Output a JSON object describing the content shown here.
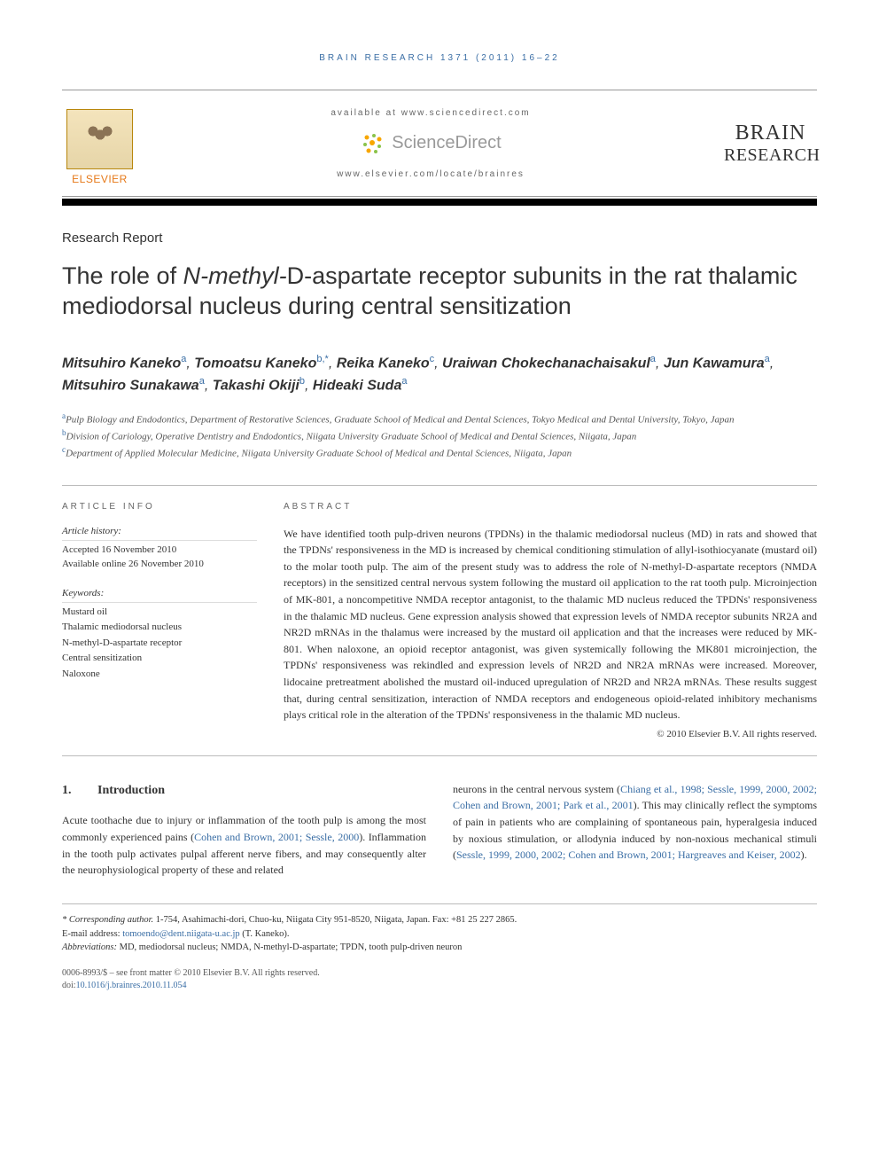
{
  "running_head": "BRAIN RESEARCH 1371 (2011) 16–22",
  "header": {
    "elsevier": "ELSEVIER",
    "available_at": "available at www.sciencedirect.com",
    "sciencedirect": "ScienceDirect",
    "locate": "www.elsevier.com/locate/brainres",
    "journal_line1": "BRAIN",
    "journal_line2": "RESEARCH"
  },
  "article_type": "Research Report",
  "title_parts": {
    "pre": "The role of ",
    "nmda": "N-methyl-",
    "d": "D",
    "post": "-aspartate receptor subunits in the rat thalamic mediodorsal nucleus during central sensitization"
  },
  "authors": [
    {
      "name": "Mitsuhiro Kaneko",
      "affil": "a"
    },
    {
      "name": "Tomoatsu Kaneko",
      "affil": "b,*"
    },
    {
      "name": "Reika Kaneko",
      "affil": "c"
    },
    {
      "name": "Uraiwan Chokechanachaisakul",
      "affil": "a"
    },
    {
      "name": "Jun Kawamura",
      "affil": "a"
    },
    {
      "name": "Mitsuhiro Sunakawa",
      "affil": "a"
    },
    {
      "name": "Takashi Okiji",
      "affil": "b"
    },
    {
      "name": "Hideaki Suda",
      "affil": "a"
    }
  ],
  "affiliations": [
    {
      "label": "a",
      "text": "Pulp Biology and Endodontics, Department of Restorative Sciences, Graduate School of Medical and Dental Sciences, Tokyo Medical and Dental University, Tokyo, Japan"
    },
    {
      "label": "b",
      "text": "Division of Cariology, Operative Dentistry and Endodontics, Niigata University Graduate School of Medical and Dental Sciences, Niigata, Japan"
    },
    {
      "label": "c",
      "text": "Department of Applied Molecular Medicine, Niigata University Graduate School of Medical and Dental Sciences, Niigata, Japan"
    }
  ],
  "article_info": {
    "heading": "ARTICLE INFO",
    "history_label": "Article history:",
    "accepted": "Accepted 16 November 2010",
    "online": "Available online 26 November 2010",
    "keywords_label": "Keywords:",
    "keywords": [
      "Mustard oil",
      "Thalamic mediodorsal nucleus",
      "N-methyl-D-aspartate receptor",
      "Central sensitization",
      "Naloxone"
    ]
  },
  "abstract": {
    "heading": "ABSTRACT",
    "text": "We have identified tooth pulp-driven neurons (TPDNs) in the thalamic mediodorsal nucleus (MD) in rats and showed that the TPDNs' responsiveness in the MD is increased by chemical conditioning stimulation of allyl-isothiocyanate (mustard oil) to the molar tooth pulp. The aim of the present study was to address the role of N-methyl-D-aspartate receptors (NMDA receptors) in the sensitized central nervous system following the mustard oil application to the rat tooth pulp. Microinjection of MK-801, a noncompetitive NMDA receptor antagonist, to the thalamic MD nucleus reduced the TPDNs' responsiveness in the thalamic MD nucleus. Gene expression analysis showed that expression levels of NMDA receptor subunits NR2A and NR2D mRNAs in the thalamus were increased by the mustard oil application and that the increases were reduced by MK-801. When naloxone, an opioid receptor antagonist, was given systemically following the MK801 microinjection, the TPDNs' responsiveness was rekindled and expression levels of NR2D and NR2A mRNAs were increased. Moreover, lidocaine pretreatment abolished the mustard oil-induced upregulation of NR2D and NR2A mRNAs. These results suggest that, during central sensitization, interaction of NMDA receptors and endogeneous opioid-related inhibitory mechanisms plays critical role in the alteration of the TPDNs' responsiveness in the thalamic MD nucleus.",
    "copyright": "© 2010 Elsevier B.V. All rights reserved."
  },
  "section": {
    "num": "1.",
    "title": "Introduction"
  },
  "body": {
    "col1_a": "Acute toothache due to injury or inflammation of the tooth pulp is among the most commonly experienced pains (",
    "col1_cite1": "Cohen and Brown, 2001; Sessle, 2000",
    "col1_b": "). Inflammation in the tooth pulp activates pulpal afferent nerve fibers, and may consequently alter the neurophysiological property of these and related",
    "col2_a": "neurons in the central nervous system (",
    "col2_cite1": "Chiang et al., 1998; Sessle, 1999, 2000, 2002; Cohen and Brown, 2001; Park et al., 2001",
    "col2_b": "). This may clinically reflect the symptoms of pain in patients who are complaining of spontaneous pain, hyperalgesia induced by noxious stimulation, or allodynia induced by non-noxious mechanical stimuli (",
    "col2_cite2": "Sessle, 1999, 2000, 2002; Cohen and Brown, 2001; Hargreaves and Keiser, 2002",
    "col2_c": ")."
  },
  "footnotes": {
    "corr_label": "* Corresponding author.",
    "corr_text": " 1-754, Asahimachi-dori, Chuo-ku, Niigata City 951-8520, Niigata, Japan. Fax: +81 25 227 2865.",
    "email_label": "E-mail address: ",
    "email": "tomoendo@dent.niigata-u.ac.jp",
    "email_who": " (T. Kaneko).",
    "abbrev_label": "Abbreviations:",
    "abbrev_text": " MD, mediodorsal nucleus; NMDA, N-methyl-D-aspartate; TPDN, tooth pulp-driven neuron"
  },
  "footer": {
    "front_matter": "0006-8993/$ – see front matter © 2010 Elsevier B.V. All rights reserved.",
    "doi_label": "doi:",
    "doi": "10.1016/j.brainres.2010.11.054"
  },
  "colors": {
    "link": "#3a6ea5",
    "elsevier_orange": "#e67817",
    "text": "#333333",
    "rule": "#bbbbbb"
  }
}
